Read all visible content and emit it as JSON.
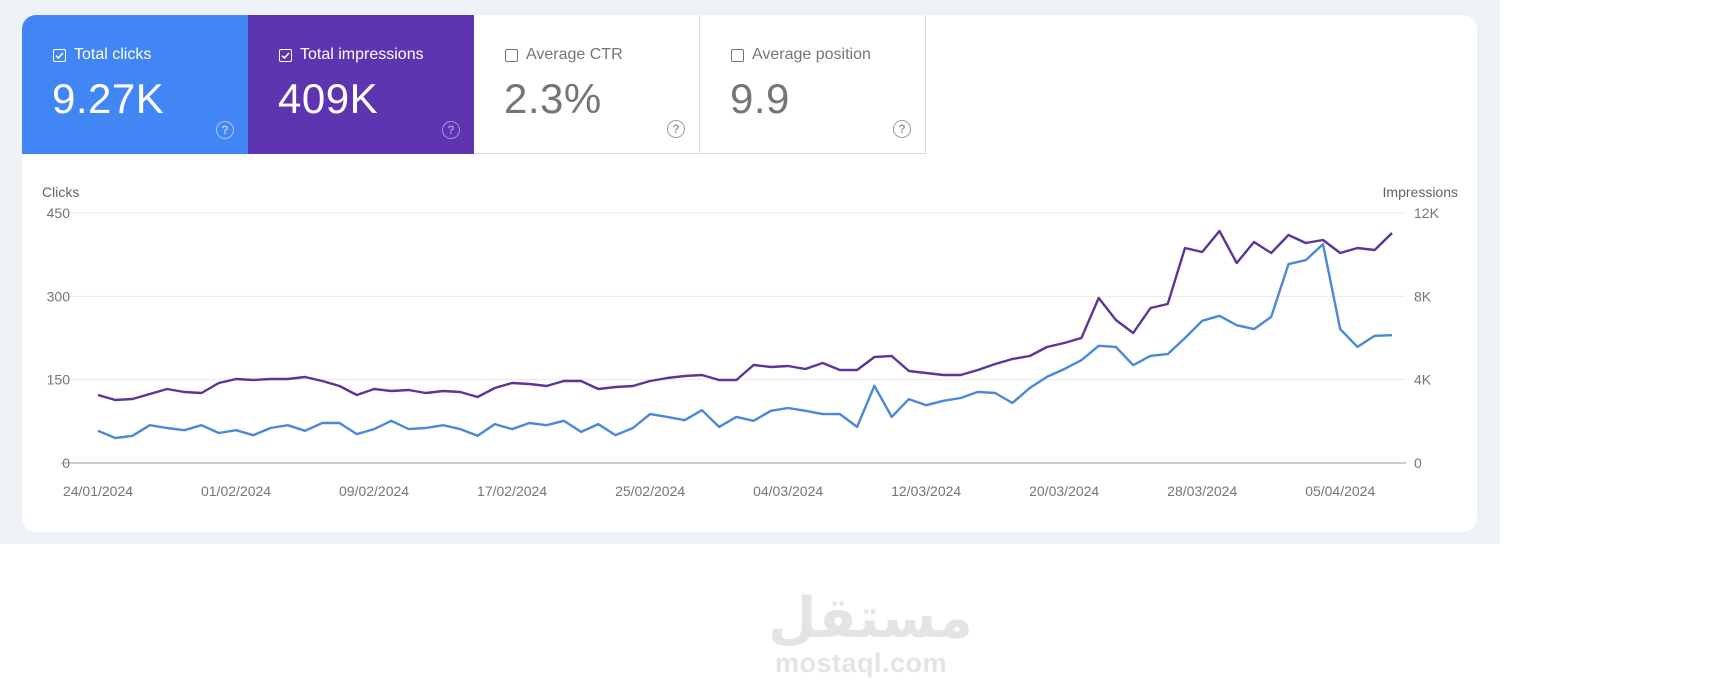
{
  "metrics": [
    {
      "id": "clicks",
      "label": "Total clicks",
      "value": "9.27K",
      "checked": true,
      "color": "#4285f4"
    },
    {
      "id": "impressions",
      "label": "Total impressions",
      "value": "409K",
      "checked": true,
      "color": "#5e35b1"
    },
    {
      "id": "ctr",
      "label": "Average CTR",
      "value": "2.3%",
      "checked": false
    },
    {
      "id": "position",
      "label": "Average position",
      "value": "9.9",
      "checked": false
    }
  ],
  "help_glyph": "?",
  "watermark": {
    "arabic": "مستقل",
    "latin": "mostaql.com"
  },
  "chart_data": {
    "type": "line",
    "title": "",
    "xlabel": "",
    "left_axis": {
      "label": "Clicks",
      "ticks": [
        "0",
        "150",
        "300",
        "450"
      ],
      "range": [
        0,
        450
      ]
    },
    "right_axis": {
      "label": "Impressions",
      "ticks": [
        "0",
        "4K",
        "8K",
        "12K"
      ],
      "range": [
        0,
        12000
      ]
    },
    "x_tick_labels": [
      "24/01/2024",
      "01/02/2024",
      "09/02/2024",
      "17/02/2024",
      "25/02/2024",
      "04/03/2024",
      "12/03/2024",
      "20/03/2024",
      "28/03/2024",
      "05/04/2024"
    ],
    "x_start": "24/01/2024",
    "x_end": "08/04/2024",
    "grid": true,
    "legend": "metric tiles above chart",
    "series": [
      {
        "name": "Clicks",
        "axis": "left",
        "color": "#4a88da",
        "values": [
          58,
          45,
          49,
          68,
          63,
          59,
          68,
          54,
          59,
          50,
          63,
          68,
          58,
          72,
          72,
          52,
          61,
          76,
          61,
          63,
          68,
          61,
          49,
          70,
          61,
          72,
          68,
          76,
          56,
          70,
          50,
          63,
          88,
          83,
          77,
          95,
          65,
          83,
          76,
          94,
          99,
          94,
          88,
          88,
          65,
          139,
          83,
          115,
          104,
          112,
          117,
          128,
          126,
          108,
          135,
          155,
          169,
          185,
          211,
          209,
          176,
          193,
          196,
          225,
          256,
          265,
          248,
          241,
          263,
          358,
          365,
          394,
          241,
          209,
          229,
          230
        ]
      },
      {
        "name": "Impressions",
        "axis": "right",
        "color": "#5c3596",
        "values": [
          3264,
          3024,
          3072,
          3312,
          3552,
          3408,
          3360,
          3840,
          4032,
          3984,
          4032,
          4032,
          4128,
          3936,
          3696,
          3264,
          3552,
          3456,
          3504,
          3360,
          3456,
          3408,
          3168,
          3600,
          3840,
          3792,
          3696,
          3936,
          3936,
          3552,
          3648,
          3696,
          3936,
          4080,
          4176,
          4224,
          3984,
          3984,
          4704,
          4608,
          4656,
          4512,
          4800,
          4464,
          4464,
          5088,
          5136,
          4416,
          4320,
          4224,
          4224,
          4464,
          4752,
          4992,
          5136,
          5568,
          5760,
          6000,
          7920,
          6864,
          6240,
          7440,
          7632,
          10320,
          10128,
          11136,
          9600,
          10608,
          10080,
          10944,
          10560,
          10704,
          10080,
          10320,
          10224,
          11040
        ]
      }
    ]
  }
}
